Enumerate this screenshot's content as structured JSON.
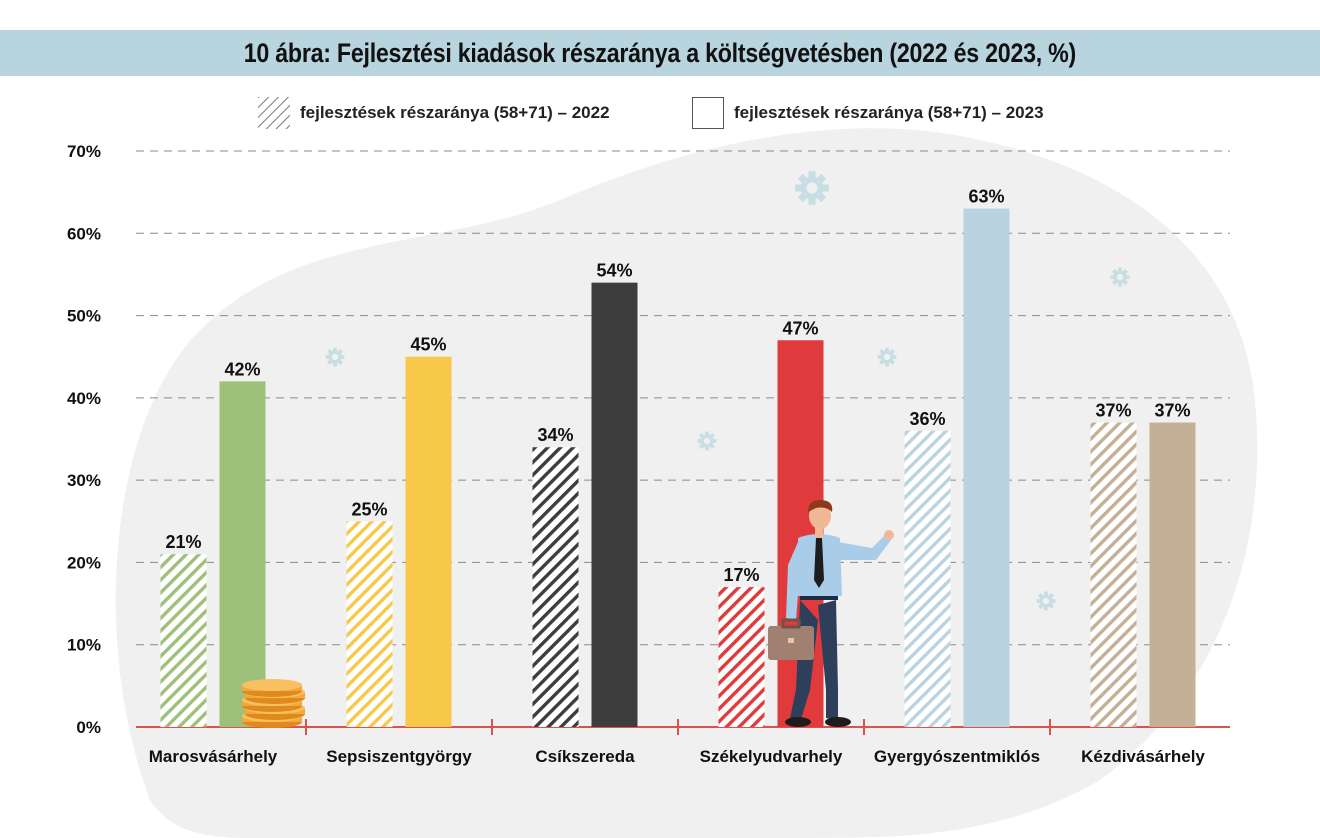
{
  "title": "10 ábra: Fejlesztési kiadások részaránya a költségvetésben (2022 és 2023, %)",
  "chart_data": {
    "type": "bar",
    "categories": [
      "Marosvásárhely",
      "Sepsiszentgyörgy",
      "Csíkszereda",
      "Székelyudvarhely",
      "Gyergyószentmiklós",
      "Kézdivásárhely"
    ],
    "series": [
      {
        "name": "fejlesztések részaránya (58+71) – 2022",
        "style": "hatched",
        "values": [
          21,
          25,
          34,
          17,
          36,
          37
        ],
        "labels": [
          "21%",
          "25%",
          "34%",
          "17%",
          "36%",
          "37%"
        ]
      },
      {
        "name": "fejlesztések részaránya (58+71) – 2023",
        "style": "solid",
        "values": [
          42,
          45,
          54,
          47,
          63,
          37
        ],
        "labels": [
          "42%",
          "45%",
          "54%",
          "47%",
          "63%",
          "37%"
        ]
      }
    ],
    "category_colors": [
      "#9dc07a",
      "#f8c84a",
      "#3d3d3d",
      "#e03a3d",
      "#b9d4e0",
      "#c4b096"
    ],
    "ylim": [
      0,
      70
    ],
    "yticks": [
      "0%",
      "10%",
      "20%",
      "30%",
      "40%",
      "50%",
      "60%",
      "70%"
    ],
    "grid": true,
    "legend_position": "top",
    "ylabel": "",
    "xlabel": ""
  },
  "legend": {
    "label_2022": "fejlesztések részaránya (58+71) – 2022",
    "label_2023": "fejlesztések részaránya (58+71) – 2023"
  },
  "decorations": [
    "gear-icon",
    "coin-stack-icon",
    "businessman-illustration"
  ],
  "colors": {
    "title_band": "#b8d4de",
    "axis": "#d9534f",
    "grid": "#888888",
    "background_blob": "#f0f0f0"
  }
}
